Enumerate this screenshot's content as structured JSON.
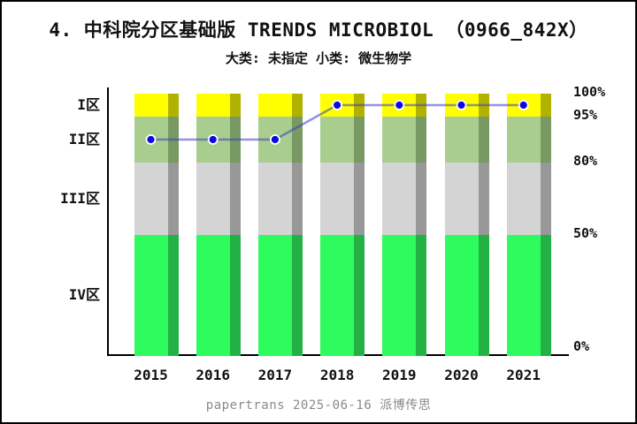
{
  "title": "4. 中科院分区基础版 TRENDS MICROBIOL （0966_842X）",
  "subtitle": "大类: 未指定 小类: 微生物学",
  "footer": "papertrans 2025-06-16 派博传思",
  "chart_data": {
    "type": "bar",
    "subtype": "stacked-zone-bands-with-line-overlay",
    "title": "4. 中科院分区基础版 TRENDS MICROBIOL （0966_842X）",
    "subtitle": "大类: 未指定 小类: 微生物学",
    "categories": [
      "2015",
      "2016",
      "2017",
      "2018",
      "2019",
      "2020",
      "2021"
    ],
    "bands": [
      {
        "label": "I区",
        "range_pct": [
          95,
          100
        ],
        "color": "#ffff00",
        "shade_color": "#b1b100"
      },
      {
        "label": "II区",
        "range_pct": [
          80,
          95
        ],
        "color": "#a9cd8e",
        "shade_color": "#789a62"
      },
      {
        "label": "III区",
        "range_pct": [
          50,
          80
        ],
        "color": "#d4d4d4",
        "shade_color": "#989898"
      },
      {
        "label": "IV区",
        "range_pct": [
          0,
          50
        ],
        "color": "#2efc5e",
        "shade_color": "#23b145"
      }
    ],
    "series": [
      {
        "name": "zone-trend-line",
        "type": "line",
        "zone_by_year": [
          "II区",
          "II区",
          "II区",
          "I区",
          "I区",
          "I区",
          "I区"
        ]
      }
    ],
    "y_ticks": [
      "100%",
      "95%",
      "80%",
      "50%",
      "0%"
    ],
    "y_tick_values": [
      100,
      95,
      80,
      50,
      0
    ],
    "ylim": [
      0,
      100
    ],
    "grid": false,
    "legend_position": "none",
    "line_color": "rgba(60,60,200,0.55)",
    "marker_color": "#0b0be0",
    "marker_outline_color": "#ffffff",
    "axis_color": "#000000",
    "background_color": "#ffffff"
  }
}
